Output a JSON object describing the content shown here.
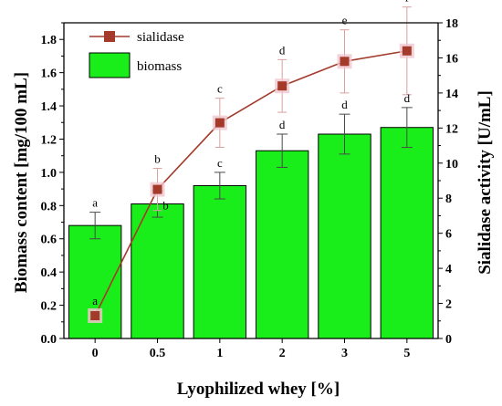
{
  "chart_data": {
    "type": "bar+line",
    "categories": [
      "0",
      "0.5",
      "1",
      "2",
      "3",
      "5"
    ],
    "xlabel": "Lyophilized whey [%]",
    "ylabel_left": "Biomass content [mg/100 mL]",
    "ylabel_right": "Sialidase activity [U/mL]",
    "ylim_left": [
      0,
      1.9
    ],
    "ylim_right": [
      0,
      18
    ],
    "yticks_left": [
      "0.0",
      "0.2",
      "0.4",
      "0.6",
      "0.8",
      "1.0",
      "1.2",
      "1.4",
      "1.6",
      "1.8"
    ],
    "yticks_right": [
      "0",
      "2",
      "4",
      "6",
      "8",
      "10",
      "12",
      "14",
      "16",
      "18"
    ],
    "grid": false,
    "legend_position": "top-left",
    "series": [
      {
        "name": "biomass",
        "type": "bar",
        "axis": "left",
        "color": "#1aee1a",
        "values": [
          0.68,
          0.81,
          0.92,
          1.13,
          1.23,
          1.27
        ],
        "errors": [
          0.08,
          0.08,
          0.08,
          0.1,
          0.12,
          0.12
        ],
        "labels": [
          "a",
          "b",
          "c",
          "d",
          "d",
          "d"
        ]
      },
      {
        "name": "sialidase",
        "type": "line",
        "axis": "right",
        "color": "#a33a2a",
        "values": [
          1.3,
          8.5,
          12.3,
          14.4,
          15.8,
          16.4
        ],
        "errors": [
          0.3,
          1.2,
          1.4,
          1.5,
          1.8,
          2.5
        ],
        "labels": [
          "a",
          "b",
          "c",
          "d",
          "e",
          "f"
        ]
      }
    ]
  }
}
